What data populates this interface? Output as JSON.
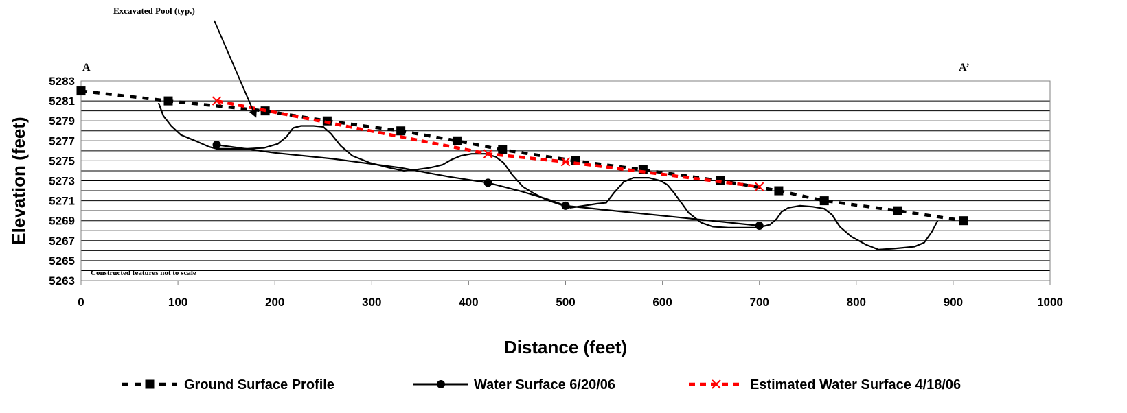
{
  "chart_data": {
    "type": "line",
    "xlabel": "Distance (feet)",
    "ylabel": "Elevation (feet)",
    "xlim": [
      0,
      1000
    ],
    "ylim": [
      5263,
      5283
    ],
    "xticks": [
      "0",
      "100",
      "200",
      "300",
      "400",
      "500",
      "600",
      "700",
      "800",
      "900",
      "1000"
    ],
    "yticks": [
      "5263",
      "5265",
      "5267",
      "5269",
      "5271",
      "5273",
      "5275",
      "5277",
      "5279",
      "5281",
      "5283"
    ],
    "grid": "horizontal",
    "legend_position": "bottom",
    "series": [
      {
        "name": "Ground Surface Profile",
        "color": "#000000",
        "line_style": "dashed",
        "marker": "square",
        "points": [
          [
            0,
            5282.0
          ],
          [
            90,
            5281.0
          ],
          [
            190,
            5280.0
          ],
          [
            254,
            5279.0
          ],
          [
            330,
            5278.0
          ],
          [
            388,
            5277.0
          ],
          [
            435,
            5276.1
          ],
          [
            510,
            5275.0
          ],
          [
            580,
            5274.1
          ],
          [
            660,
            5273.0
          ],
          [
            720,
            5272.0
          ],
          [
            767,
            5271.0
          ],
          [
            843,
            5270.0
          ],
          [
            911,
            5269.0
          ]
        ]
      },
      {
        "name": "Water Surface 6/20/06",
        "color": "#000000",
        "line_style": "solid",
        "marker": "circle",
        "points": [
          [
            140,
            5276.6
          ],
          [
            420,
            5272.8
          ],
          [
            500,
            5270.5
          ],
          [
            700,
            5268.5
          ]
        ]
      },
      {
        "name": "Estimated Water Surface 4/18/06",
        "color": "#ff0000",
        "line_style": "dashed",
        "marker": "x",
        "points": [
          [
            140,
            5281.0
          ],
          [
            420,
            5275.7
          ],
          [
            500,
            5274.9
          ],
          [
            700,
            5272.4
          ]
        ]
      }
    ],
    "feature_profile": {
      "color": "#000000",
      "points": [
        [
          80,
          5280.8
        ],
        [
          85,
          5279.5
        ],
        [
          93,
          5278.5
        ],
        [
          103,
          5277.6
        ],
        [
          118,
          5277.0
        ],
        [
          132,
          5276.4
        ],
        [
          140,
          5276.2
        ],
        [
          156,
          5276.2
        ],
        [
          172,
          5276.2
        ],
        [
          189,
          5276.3
        ],
        [
          203,
          5276.7
        ],
        [
          212,
          5277.4
        ],
        [
          219,
          5278.3
        ],
        [
          227,
          5278.5
        ],
        [
          240,
          5278.5
        ],
        [
          250,
          5278.4
        ],
        [
          258,
          5277.7
        ],
        [
          268,
          5276.5
        ],
        [
          280,
          5275.5
        ],
        [
          298,
          5274.8
        ],
        [
          318,
          5274.3
        ],
        [
          333,
          5274.0
        ],
        [
          345,
          5274.1
        ],
        [
          360,
          5274.3
        ],
        [
          373,
          5274.6
        ],
        [
          382,
          5275.1
        ],
        [
          392,
          5275.5
        ],
        [
          403,
          5275.7
        ],
        [
          417,
          5275.7
        ],
        [
          428,
          5275.4
        ],
        [
          436,
          5274.8
        ],
        [
          445,
          5273.6
        ],
        [
          456,
          5272.4
        ],
        [
          468,
          5271.7
        ],
        [
          480,
          5271.1
        ],
        [
          492,
          5270.7
        ],
        [
          505,
          5270.3
        ],
        [
          519,
          5270.5
        ],
        [
          532,
          5270.7
        ],
        [
          542,
          5270.8
        ],
        [
          550,
          5271.8
        ],
        [
          560,
          5272.9
        ],
        [
          570,
          5273.3
        ],
        [
          586,
          5273.3
        ],
        [
          598,
          5273.0
        ],
        [
          605,
          5272.6
        ],
        [
          612,
          5271.8
        ],
        [
          627,
          5269.8
        ],
        [
          640,
          5268.8
        ],
        [
          652,
          5268.4
        ],
        [
          668,
          5268.3
        ],
        [
          686,
          5268.3
        ],
        [
          698,
          5268.3
        ],
        [
          711,
          5268.6
        ],
        [
          718,
          5269.2
        ],
        [
          723,
          5269.9
        ],
        [
          730,
          5270.3
        ],
        [
          742,
          5270.5
        ],
        [
          755,
          5270.4
        ],
        [
          767,
          5270.2
        ],
        [
          775,
          5269.6
        ],
        [
          783,
          5268.4
        ],
        [
          795,
          5267.4
        ],
        [
          810,
          5266.6
        ],
        [
          823,
          5266.1
        ],
        [
          839,
          5266.2
        ],
        [
          860,
          5266.4
        ],
        [
          870,
          5266.8
        ],
        [
          878,
          5267.9
        ],
        [
          884,
          5269.0
        ]
      ]
    },
    "water_line_detail": {
      "color": "#000000",
      "points": [
        [
          140,
          5276.6
        ],
        [
          200,
          5275.8
        ],
        [
          260,
          5275.2
        ],
        [
          330,
          5274.3
        ],
        [
          380,
          5273.4
        ],
        [
          420,
          5272.8
        ],
        [
          452,
          5272.0
        ],
        [
          480,
          5271.2
        ],
        [
          500,
          5270.5
        ],
        [
          560,
          5269.9
        ],
        [
          620,
          5269.3
        ],
        [
          700,
          5268.5
        ]
      ]
    },
    "annotations": {
      "top_label": "Excavated Pool (typ.)",
      "arrow_tip": [
        180,
        5279.5
      ],
      "left_section_label": "A",
      "right_section_label": "A’",
      "note": "Constructed features not to scale",
      "note_line": [
        195,
        700,
        5264.0
      ]
    }
  }
}
